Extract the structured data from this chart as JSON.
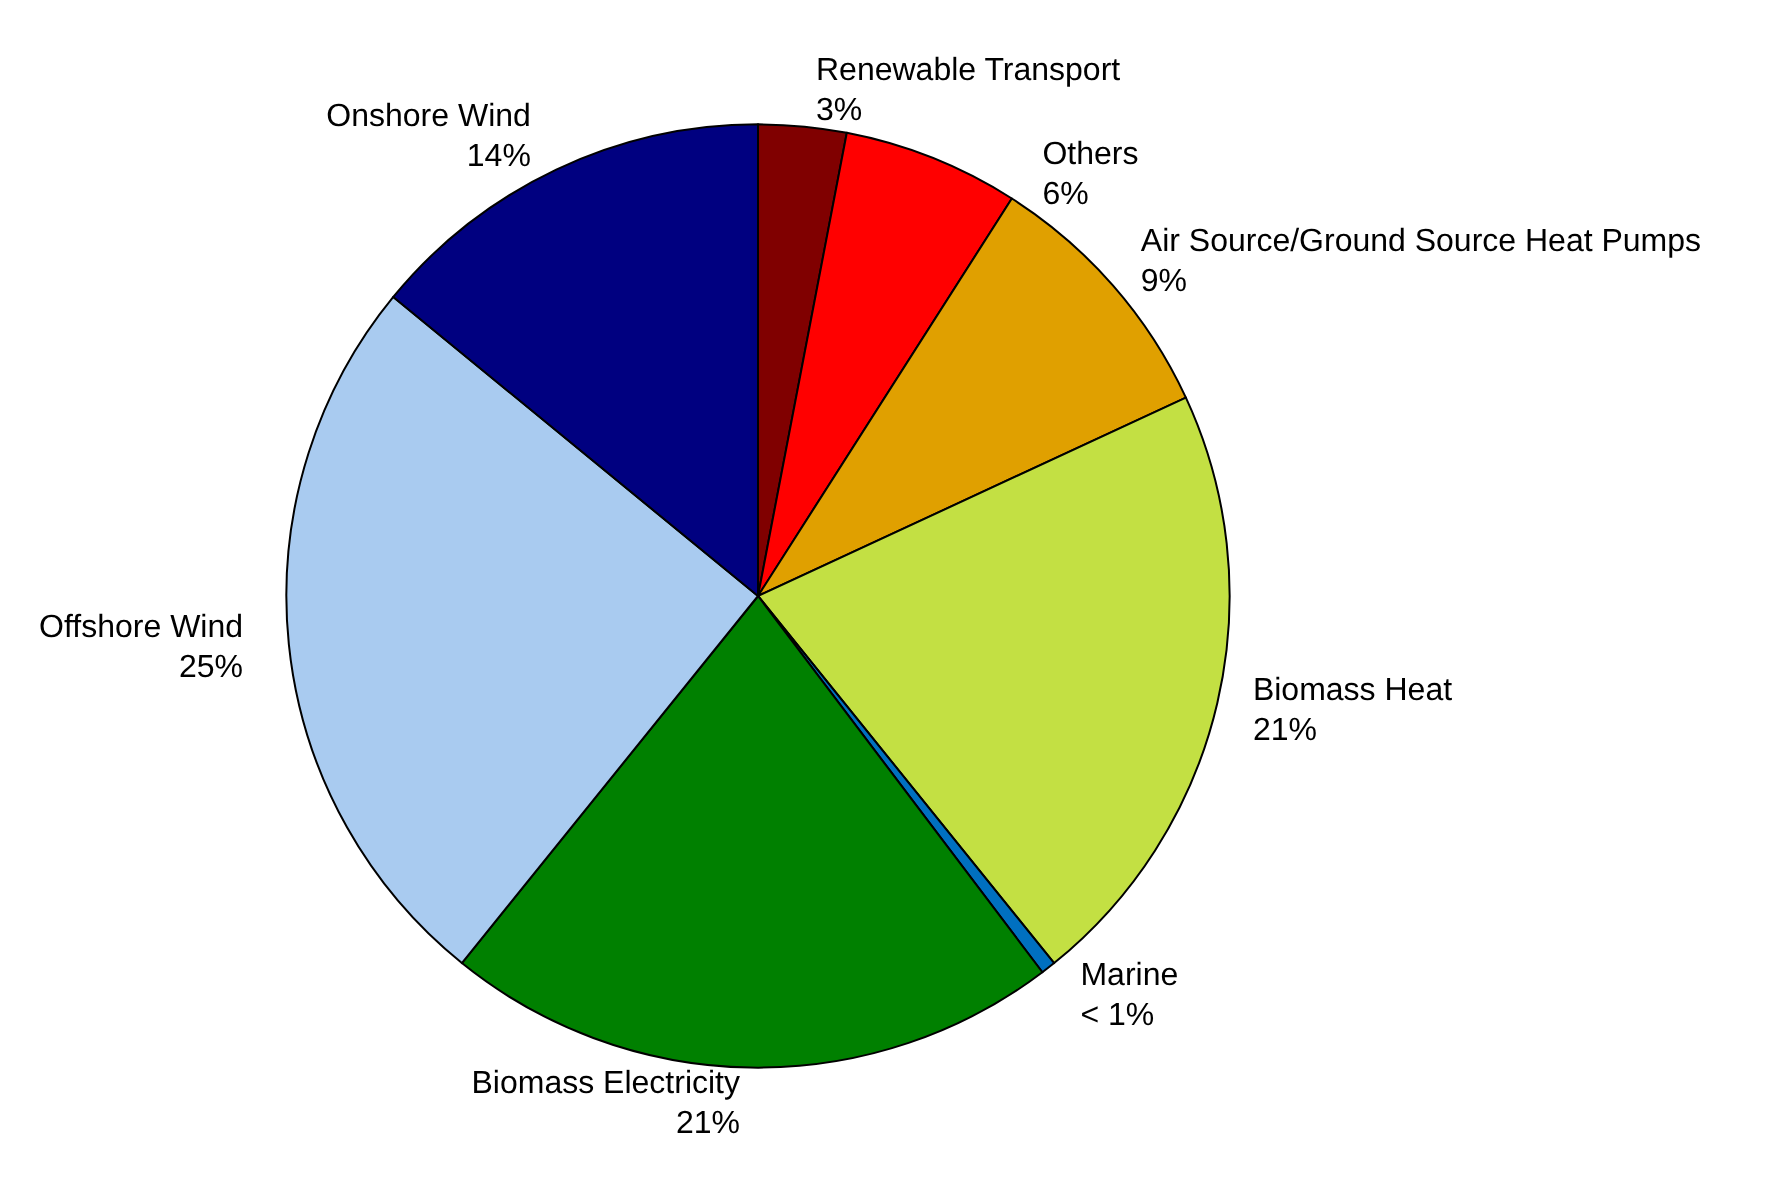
{
  "chart_data": {
    "type": "pie",
    "categories": [
      "Renewable Transport",
      "Others",
      "Air Source/Ground Source Heat Pumps",
      "Biomass Heat",
      "Marine",
      "Biomass Electricity",
      "Offshore Wind",
      "Onshore Wind"
    ],
    "values": [
      3,
      6,
      9,
      21,
      0.5,
      21,
      25,
      14
    ],
    "value_labels": [
      "3%",
      "6%",
      "9%",
      "21%",
      "< 1%",
      "21%",
      "25%",
      "14%"
    ],
    "colors": [
      "#800000",
      "#ff0000",
      "#e0a000",
      "#c3e043",
      "#0070c0",
      "#008000",
      "#a9cbf0",
      "#000080"
    ]
  }
}
